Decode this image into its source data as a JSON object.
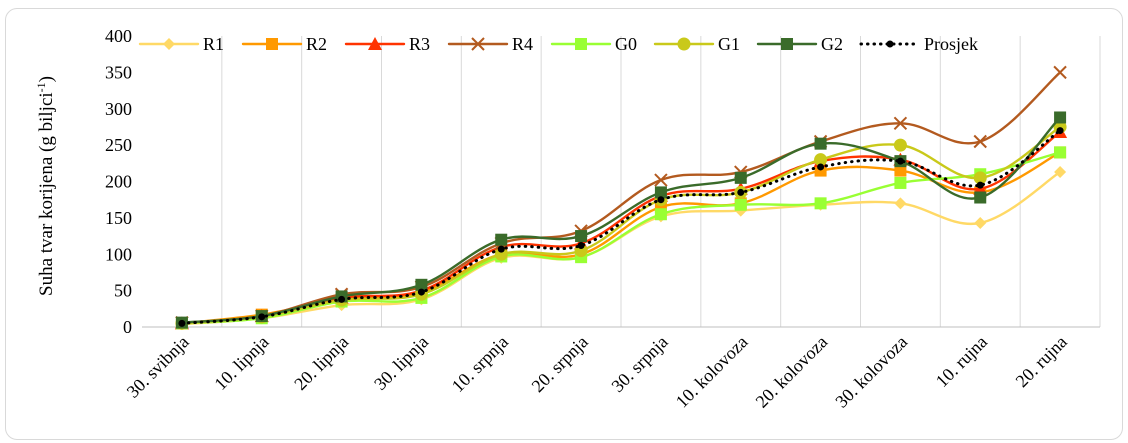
{
  "chart_data": {
    "type": "line",
    "title": "",
    "xlabel": "",
    "ylabel": "Suha tvar korijena (g biljci",
    "ylabel_sup": "-1",
    "ylabel_close": ")",
    "ylim": [
      0,
      400
    ],
    "yticks": [
      0,
      50,
      100,
      150,
      200,
      250,
      300,
      350,
      400
    ],
    "grid": "vertical",
    "legend_position": "top",
    "categories": [
      "30. svibnja",
      "10. lipnja",
      "20. lipnja",
      "30. lipnja",
      "10. srpnja",
      "20. srpnja",
      "30. srpnja",
      "10. kolovoza",
      "20. kolovoza",
      "30. kolovoza",
      "10. rujna",
      "20. rujna"
    ],
    "series": [
      {
        "name": "R1",
        "color": "#ffd966",
        "marker": "diamond",
        "dash": "none",
        "values": [
          4,
          12,
          30,
          38,
          95,
          96,
          152,
          160,
          168,
          170,
          143,
          213
        ]
      },
      {
        "name": "R2",
        "color": "#ff9900",
        "marker": "square",
        "dash": "none",
        "values": [
          5,
          17,
          38,
          48,
          100,
          100,
          165,
          170,
          215,
          215,
          185,
          240
        ]
      },
      {
        "name": "R3",
        "color": "#ff3300",
        "marker": "triangle",
        "dash": "none",
        "values": [
          5,
          15,
          40,
          50,
          110,
          115,
          180,
          190,
          228,
          230,
          190,
          268
        ]
      },
      {
        "name": "R4",
        "color": "#b35a1f",
        "marker": "x",
        "dash": "none",
        "values": [
          6,
          15,
          45,
          55,
          115,
          132,
          202,
          213,
          255,
          280,
          255,
          350
        ]
      },
      {
        "name": "G0",
        "color": "#99ff33",
        "marker": "square",
        "dash": "none",
        "values": [
          5,
          12,
          35,
          40,
          97,
          96,
          155,
          168,
          170,
          198,
          210,
          240
        ]
      },
      {
        "name": "G1",
        "color": "#c9c91a",
        "marker": "circle",
        "dash": "none",
        "values": [
          5,
          14,
          37,
          45,
          100,
          105,
          175,
          185,
          230,
          250,
          205,
          275
        ]
      },
      {
        "name": "G2",
        "color": "#3a6b2a",
        "marker": "square",
        "dash": "none",
        "values": [
          6,
          15,
          42,
          58,
          120,
          125,
          185,
          205,
          252,
          228,
          178,
          288
        ]
      },
      {
        "name": "Prosjek",
        "color": "#000000",
        "marker": "circle-small",
        "dash": "dot",
        "values": [
          5,
          14,
          38,
          48,
          107,
          112,
          175,
          185,
          220,
          228,
          195,
          270
        ]
      }
    ]
  }
}
